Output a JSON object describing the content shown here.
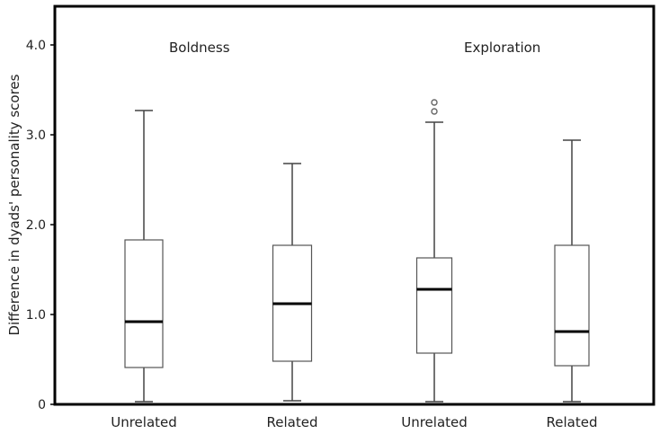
{
  "chart_data": {
    "type": "box",
    "title": "",
    "xlabel": "",
    "ylabel": "Difference in dyads' personality scores",
    "ylim": [
      0,
      4.4
    ],
    "yticks": [
      {
        "value": 0,
        "label": "0"
      },
      {
        "value": 1,
        "label": "1.0"
      },
      {
        "value": 2,
        "label": "2.0"
      },
      {
        "value": 3,
        "label": "3.0"
      },
      {
        "value": 4,
        "label": "4.0"
      }
    ],
    "groups": [
      {
        "label": "Boldness"
      },
      {
        "label": "Exploration"
      }
    ],
    "categories": [
      "Unrelated",
      "Related",
      "Unrelated",
      "Related"
    ],
    "boxes": [
      {
        "group": "Boldness",
        "category": "Unrelated",
        "whisker_low": 0.03,
        "q1": 0.41,
        "median": 0.92,
        "q3": 1.83,
        "whisker_high": 3.27,
        "outliers": []
      },
      {
        "group": "Boldness",
        "category": "Related",
        "whisker_low": 0.04,
        "q1": 0.48,
        "median": 1.12,
        "q3": 1.77,
        "whisker_high": 2.68,
        "outliers": []
      },
      {
        "group": "Exploration",
        "category": "Unrelated",
        "whisker_low": 0.03,
        "q1": 0.57,
        "median": 1.28,
        "q3": 1.63,
        "whisker_high": 3.14,
        "outliers": [
          3.26,
          3.36
        ]
      },
      {
        "group": "Exploration",
        "category": "Related",
        "whisker_low": 0.03,
        "q1": 0.43,
        "median": 0.81,
        "q3": 1.77,
        "whisker_high": 2.94,
        "outliers": []
      }
    ],
    "grid": false,
    "legend": null
  },
  "colors": {
    "axis": "#000000",
    "box_stroke": "#555555",
    "median": "#000000",
    "whisker": "#444444",
    "outlier": "#666666"
  }
}
